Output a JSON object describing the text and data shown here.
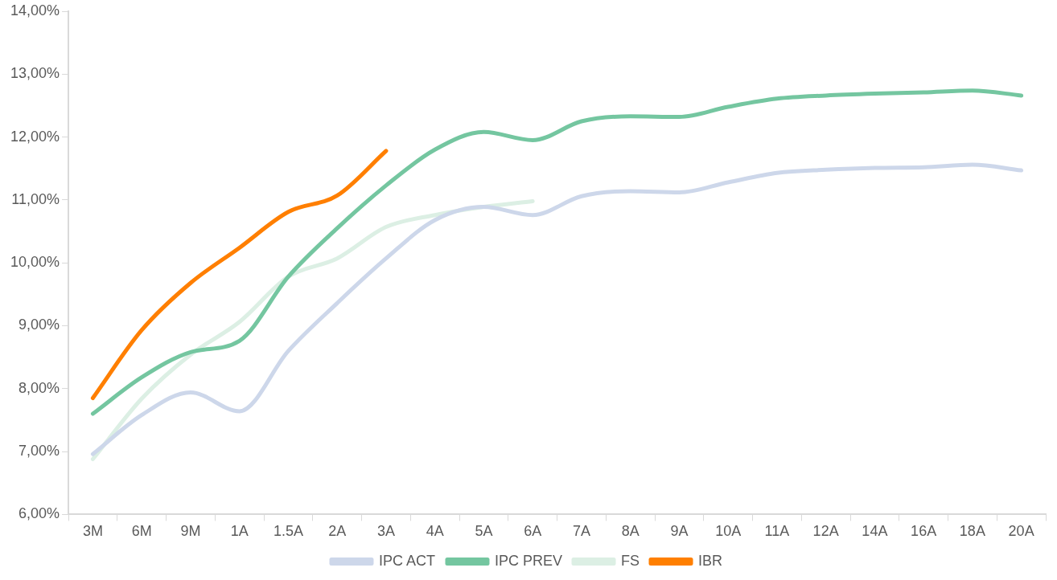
{
  "chart_data": {
    "type": "line",
    "categories": [
      "3M",
      "6M",
      "9M",
      "1A",
      "1.5A",
      "2A",
      "3A",
      "4A",
      "5A",
      "6A",
      "7A",
      "8A",
      "9A",
      "10A",
      "11A",
      "12A",
      "14A",
      "16A",
      "18A",
      "20A"
    ],
    "series": [
      {
        "name": "IPC ACT",
        "color": "#cdd7ea",
        "values": [
          6.96,
          7.58,
          7.94,
          7.64,
          8.6,
          9.36,
          10.07,
          10.68,
          10.89,
          10.76,
          11.06,
          11.14,
          11.12,
          11.28,
          11.43,
          11.48,
          11.51,
          11.52,
          11.56,
          11.47
        ]
      },
      {
        "name": "IPC PREV",
        "color": "#74c6a0",
        "values": [
          7.6,
          8.18,
          8.58,
          8.76,
          9.78,
          10.55,
          11.23,
          11.8,
          12.08,
          11.95,
          12.25,
          12.33,
          12.32,
          12.48,
          12.61,
          12.66,
          12.69,
          12.71,
          12.74,
          12.66
        ]
      },
      {
        "name": "FS",
        "color": "#dcefe4",
        "values": [
          6.88,
          7.84,
          8.54,
          9.06,
          9.78,
          10.07,
          10.57,
          10.76,
          10.89,
          10.98,
          null,
          null,
          null,
          null,
          null,
          null,
          null,
          null,
          null,
          null
        ]
      },
      {
        "name": "IBR",
        "color": "#ff7f00",
        "values": [
          7.85,
          8.93,
          9.68,
          10.24,
          10.81,
          11.07,
          11.78,
          null,
          null,
          null,
          null,
          null,
          null,
          null,
          null,
          null,
          null,
          null,
          null,
          null
        ]
      }
    ],
    "ylim": [
      6,
      14
    ],
    "yticks": [
      {
        "value": 6,
        "label": "6,00%"
      },
      {
        "value": 7,
        "label": "7,00%"
      },
      {
        "value": 8,
        "label": "8,00%"
      },
      {
        "value": 9,
        "label": "9,00%"
      },
      {
        "value": 10,
        "label": "10,00%"
      },
      {
        "value": 11,
        "label": "11,00%"
      },
      {
        "value": 12,
        "label": "12,00%"
      },
      {
        "value": 13,
        "label": "13,00%"
      },
      {
        "value": 14,
        "label": "14,00%"
      }
    ],
    "grid": false,
    "legend": "bottom",
    "marker": "none",
    "line_style": "solid"
  }
}
